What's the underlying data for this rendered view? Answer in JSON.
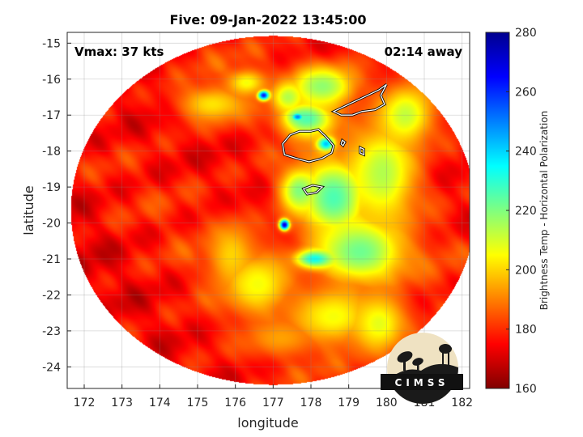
{
  "chart_data": {
    "type": "heatmap",
    "title": "Five: 09-Jan-2022 13:45:00",
    "xlabel": "longitude",
    "ylabel": "latitude",
    "xlim": [
      171.55,
      182.2
    ],
    "ylim": [
      -24.6,
      -14.7
    ],
    "xticks": [
      172,
      173,
      174,
      175,
      176,
      177,
      178,
      179,
      180,
      181,
      182
    ],
    "yticks": [
      -15,
      -16,
      -17,
      -18,
      -19,
      -20,
      -21,
      -22,
      -23,
      -24
    ],
    "grid": true,
    "annotations": {
      "left": "Vmax: 37 kts",
      "right": "02:14 away"
    },
    "colorbar": {
      "label": "Brightness Temp - Horizontal Polarization",
      "range": [
        160,
        280
      ],
      "ticks": [
        160,
        180,
        200,
        220,
        240,
        260,
        280
      ],
      "colormap": "jet",
      "placement": "right"
    },
    "swath": {
      "center": [
        177.0,
        -19.65
      ],
      "radius_lon": 5.35,
      "radius_lat": 4.85
    },
    "background_temp": 262,
    "features": [
      {
        "lon": 176.75,
        "lat": -16.45,
        "min_temp": 178,
        "sigma_lon": 0.16,
        "sigma_lat": 0.14
      },
      {
        "lon": 177.65,
        "lat": -17.05,
        "min_temp": 190,
        "sigma_lon": 0.2,
        "sigma_lat": 0.14
      },
      {
        "lon": 178.4,
        "lat": -17.8,
        "min_temp": 198,
        "sigma_lon": 0.25,
        "sigma_lat": 0.22
      },
      {
        "lon": 177.3,
        "lat": -20.05,
        "min_temp": 170,
        "sigma_lon": 0.14,
        "sigma_lat": 0.16
      },
      {
        "lon": 177.9,
        "lat": -17.1,
        "min_temp": 214,
        "sigma_lon": 0.7,
        "sigma_lat": 0.5
      },
      {
        "lon": 178.3,
        "lat": -16.2,
        "min_temp": 222,
        "sigma_lon": 0.9,
        "sigma_lat": 0.6
      },
      {
        "lon": 178.6,
        "lat": -19.3,
        "min_temp": 214,
        "sigma_lon": 0.9,
        "sigma_lat": 1.1
      },
      {
        "lon": 179.3,
        "lat": -20.8,
        "min_temp": 218,
        "sigma_lon": 1.2,
        "sigma_lat": 0.9
      },
      {
        "lon": 178.1,
        "lat": -21.0,
        "min_temp": 206,
        "sigma_lon": 0.5,
        "sigma_lat": 0.25
      },
      {
        "lon": 177.7,
        "lat": -19.1,
        "min_temp": 220,
        "sigma_lon": 0.5,
        "sigma_lat": 0.6
      },
      {
        "lon": 179.9,
        "lat": -18.6,
        "min_temp": 226,
        "sigma_lon": 0.9,
        "sigma_lat": 1.4
      },
      {
        "lon": 180.5,
        "lat": -17.0,
        "min_temp": 228,
        "sigma_lon": 0.7,
        "sigma_lat": 0.8
      },
      {
        "lon": 176.6,
        "lat": -21.7,
        "min_temp": 234,
        "sigma_lon": 0.9,
        "sigma_lat": 0.9
      },
      {
        "lon": 178.6,
        "lat": -22.6,
        "min_temp": 234,
        "sigma_lon": 1.1,
        "sigma_lat": 0.8
      },
      {
        "lon": 175.9,
        "lat": -20.9,
        "min_temp": 240,
        "sigma_lon": 0.6,
        "sigma_lat": 0.9
      },
      {
        "lon": 175.4,
        "lat": -16.7,
        "min_temp": 238,
        "sigma_lon": 0.9,
        "sigma_lat": 0.5
      },
      {
        "lon": 179.8,
        "lat": -22.8,
        "min_temp": 232,
        "sigma_lon": 0.7,
        "sigma_lat": 0.8
      },
      {
        "lon": 177.2,
        "lat": -23.2,
        "min_temp": 246,
        "sigma_lon": 0.9,
        "sigma_lat": 0.5
      },
      {
        "lon": 177.4,
        "lat": -16.5,
        "min_temp": 226,
        "sigma_lon": 0.4,
        "sigma_lat": 0.4
      },
      {
        "lon": 176.3,
        "lat": -16.1,
        "min_temp": 234,
        "sigma_lon": 0.5,
        "sigma_lat": 0.35
      }
    ],
    "islands": [
      [
        [
          178.0,
          -17.45
        ],
        [
          178.2,
          -17.4
        ],
        [
          178.4,
          -17.6
        ],
        [
          178.6,
          -17.85
        ],
        [
          178.55,
          -18.05
        ],
        [
          178.3,
          -18.2
        ],
        [
          177.95,
          -18.3
        ],
        [
          177.6,
          -18.2
        ],
        [
          177.3,
          -18.1
        ],
        [
          177.25,
          -17.8
        ],
        [
          177.45,
          -17.55
        ],
        [
          177.7,
          -17.45
        ]
      ],
      [
        [
          178.6,
          -16.9
        ],
        [
          178.9,
          -16.75
        ],
        [
          179.2,
          -16.6
        ],
        [
          179.5,
          -16.45
        ],
        [
          179.8,
          -16.3
        ],
        [
          180.0,
          -16.15
        ],
        [
          179.85,
          -16.45
        ],
        [
          179.95,
          -16.7
        ],
        [
          179.7,
          -16.85
        ],
        [
          179.35,
          -16.9
        ],
        [
          179.1,
          -17.0
        ],
        [
          178.8,
          -17.0
        ]
      ],
      [
        [
          177.8,
          -19.05
        ],
        [
          178.05,
          -18.95
        ],
        [
          178.3,
          -19.0
        ],
        [
          178.15,
          -19.15
        ],
        [
          177.9,
          -19.2
        ]
      ],
      [
        [
          179.3,
          -17.9
        ],
        [
          179.4,
          -17.95
        ],
        [
          179.4,
          -18.1
        ],
        [
          179.3,
          -18.05
        ]
      ],
      [
        [
          178.83,
          -17.7
        ],
        [
          178.9,
          -17.75
        ],
        [
          178.85,
          -17.85
        ],
        [
          178.8,
          -17.8
        ]
      ]
    ]
  },
  "logo": {
    "text": "CIMSS"
  }
}
